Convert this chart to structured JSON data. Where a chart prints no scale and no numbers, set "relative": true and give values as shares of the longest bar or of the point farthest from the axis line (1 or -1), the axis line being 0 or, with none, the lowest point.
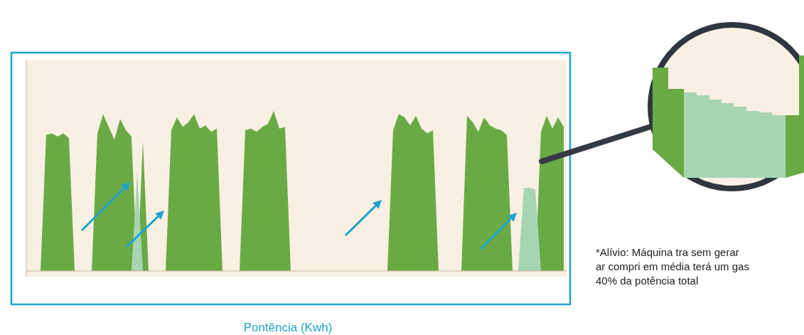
{
  "chart_data": {
    "type": "area",
    "relative": true,
    "xlabel": "Pontência (Kwh)",
    "categories": [
      null,
      null,
      null,
      null,
      null,
      null,
      null,
      null,
      null,
      null,
      null,
      null,
      null,
      null,
      null,
      null,
      null,
      null,
      null,
      null,
      null,
      null,
      null,
      null,
      null,
      null,
      null,
      null,
      null,
      null,
      null,
      null,
      null,
      null,
      null,
      null,
      null,
      null,
      null,
      null,
      null,
      null,
      null,
      null,
      null,
      null,
      null,
      null,
      null,
      null,
      null,
      null,
      null,
      null,
      null,
      null,
      null,
      null,
      null,
      null,
      null,
      null,
      null,
      null,
      null,
      null,
      null,
      null,
      null,
      null,
      null,
      null,
      null,
      null,
      null,
      null,
      null,
      null,
      null,
      null,
      null,
      null,
      null,
      null,
      null,
      null,
      null,
      null,
      null,
      null,
      null,
      null,
      null,
      null,
      null
    ],
    "series": [
      {
        "color": "#6aaa45",
        "values": [
          0,
          0,
          0,
          0.85,
          0.86,
          0.84,
          0.86,
          0.83,
          0,
          0,
          0,
          0,
          0.86,
          0.98,
          0.9,
          0.82,
          0.95,
          0.88,
          0.84,
          0,
          0.81,
          0,
          0,
          0,
          0,
          0.88,
          0.96,
          0.9,
          0.93,
          0.98,
          0.89,
          0.91,
          0.87,
          0.89,
          0,
          0,
          0,
          0,
          0.88,
          0.89,
          0.87,
          0.9,
          0.92,
          1.0,
          0.89,
          0.9,
          0,
          0,
          0,
          0,
          0,
          0,
          0,
          0,
          0,
          0,
          0,
          0,
          0,
          0,
          0,
          0,
          0,
          0,
          0.88,
          0.98,
          0.96,
          0.91,
          0.97,
          0.89,
          0.86,
          0.88,
          0,
          0,
          0,
          0,
          0,
          0.97,
          0.93,
          0.87,
          0.96,
          0.91,
          0.89,
          0.88,
          0.85,
          0,
          0,
          0,
          0,
          0,
          0.87,
          0.97,
          0.89,
          0.96,
          0.9
        ]
      },
      {
        "color": "#a6d5b4",
        "values": [
          0,
          0,
          0,
          0,
          0,
          0,
          0,
          0,
          0,
          0,
          0,
          0,
          0,
          0,
          0,
          0,
          0,
          0,
          0,
          0.62,
          0,
          0,
          0,
          0,
          0,
          0,
          0,
          0,
          0,
          0,
          0,
          0,
          0,
          0,
          0,
          0,
          0,
          0,
          0,
          0,
          0,
          0,
          0,
          0,
          0,
          0,
          0,
          0,
          0,
          0,
          0,
          0,
          0,
          0,
          0,
          0,
          0,
          0,
          0,
          0,
          0,
          0,
          0,
          0,
          0,
          0,
          0,
          0,
          0,
          0,
          0,
          0,
          0,
          0,
          0,
          0,
          0,
          0,
          0,
          0,
          0,
          0,
          0,
          0,
          0,
          0,
          0,
          0.52,
          0.52,
          0.51,
          0,
          0,
          0,
          0,
          0
        ]
      }
    ],
    "annotations": [
      "*Alívio: Máquina tra sem gerar ar compri em média terá um gas 40% da potência total"
    ]
  }
}
